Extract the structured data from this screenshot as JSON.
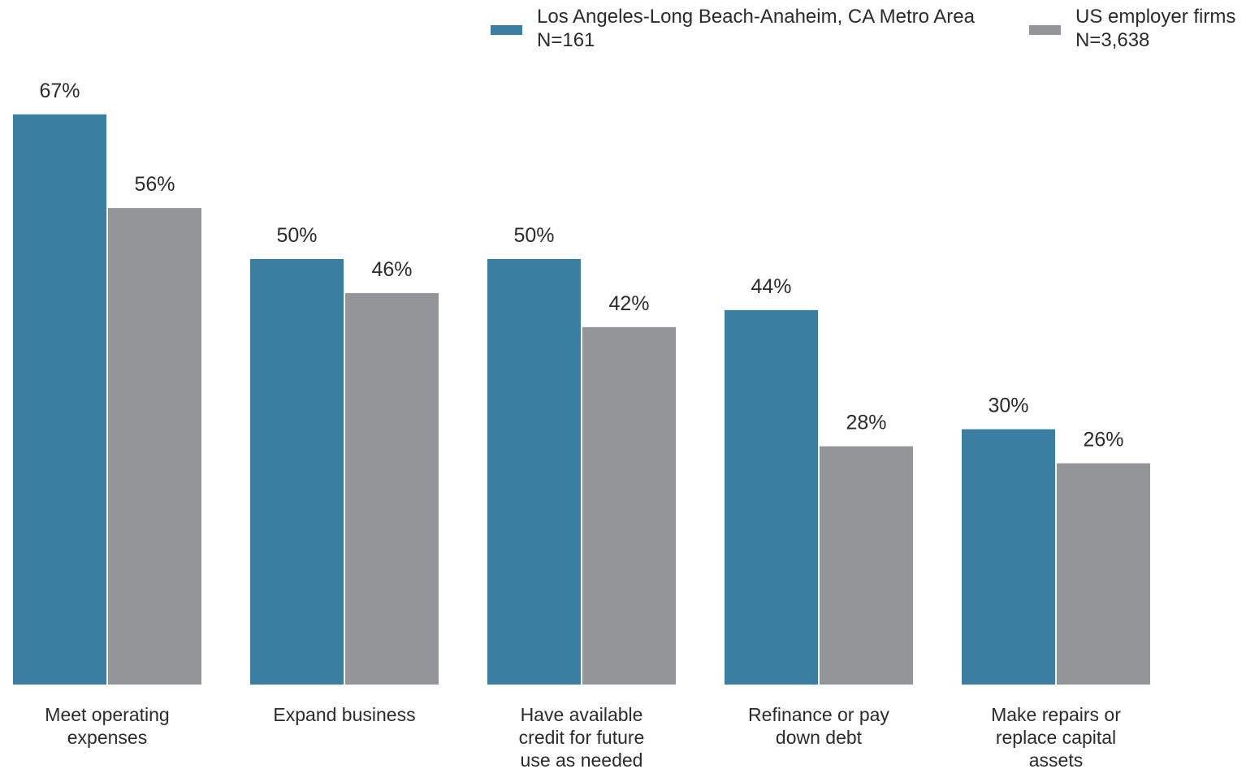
{
  "chart_data": {
    "type": "bar",
    "title": "",
    "xlabel": "",
    "ylabel": "",
    "ylim": [
      0,
      70
    ],
    "grid": false,
    "legend_position": "top-right",
    "categories": [
      [
        "Meet operating",
        "expenses"
      ],
      [
        "Expand business"
      ],
      [
        "Have available",
        "credit for future",
        "use as needed"
      ],
      [
        "Refinance or pay",
        "down debt"
      ],
      [
        "Make repairs or",
        "replace capital",
        "assets"
      ]
    ],
    "series": [
      {
        "name": "Los Angeles-Long Beach-Anaheim, CA Metro Area",
        "sample": "N=161",
        "color": "#3a7ea1",
        "values": [
          67,
          50,
          50,
          44,
          30
        ]
      },
      {
        "name": "US employer firms",
        "sample": "N=3,638",
        "color": "#939598",
        "values": [
          56,
          46,
          42,
          28,
          26
        ]
      }
    ],
    "value_suffix": "%"
  }
}
